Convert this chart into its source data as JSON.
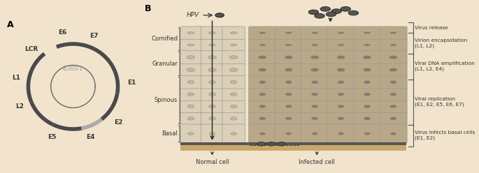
{
  "bg_color": "#f2e4cc",
  "dark_arrow_color": "#4a4a4a",
  "light_arrow_color": "#aaaaaa",
  "cell_border_color": "#999999",
  "cell_fill_normal": "#ddd0b8",
  "cell_fill_infected": "#b8a888",
  "nucleus_normal": "#c4b89a",
  "nucleus_infected": "#8a7a60",
  "virus_color": "#555555",
  "text_color": "#333333",
  "label_A": "A",
  "label_B": "B",
  "circle_label": "8,000/1",
  "layer_labels": [
    "Cornified",
    "Granular",
    "Spinous",
    "Basal"
  ],
  "right_labels": [
    "Virus release",
    "Virion encapsidation\n(L1, L2)",
    "Viral DNA amplification\n(L1, L2, E4)",
    "Viral replication\n(E1, E2, E5, E6, E7)",
    "Virus infects basal cells\n(E1, E2)"
  ],
  "bottom_labels": [
    "Normal cell",
    "Infected cell"
  ],
  "hpv_label": "HPV"
}
